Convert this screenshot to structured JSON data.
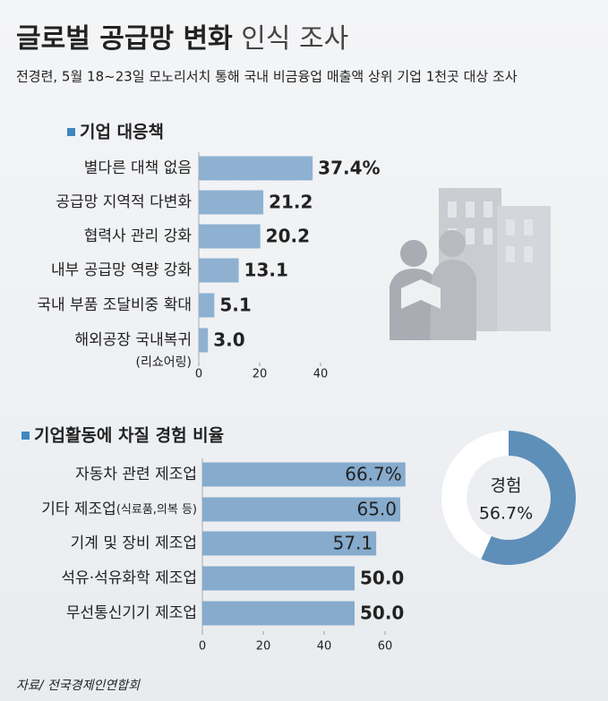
{
  "header": {
    "title": [
      "글로벌 공급망 변화",
      "인식 조사"
    ],
    "subtitle": "전경련, 5월 18~23일 모노리서치 통해 국내 비금융업 매출액 상위 기업 1천곳 대상 조사"
  },
  "chart_data": [
    {
      "type": "hbar",
      "title": "기업 대응책",
      "categories": [
        "별다른 대책 없음",
        "공급망 지역적 다변화",
        "협력사 관리 강화",
        "내부 공급망 역량 강화",
        "국내 부품 조달비중 확대",
        "해외공장 국내복귀"
      ],
      "notes": [
        null,
        null,
        null,
        null,
        null,
        "(리쇼어링)"
      ],
      "values": [
        37.4,
        21.2,
        20.2,
        13.1,
        5.1,
        3.0
      ],
      "value_labels": [
        "37.4%",
        "21.2",
        "20.2",
        "13.1",
        "5.1",
        "3.0"
      ],
      "color": "#8eb1d1",
      "xlim": [
        0,
        40
      ],
      "xticks": [
        0,
        20,
        40
      ]
    },
    {
      "type": "hbar",
      "title": "기업활동에 차질 경험 비율",
      "categories": [
        "자동차 관련 제조업",
        "기타 제조업",
        "기계 및 장비 제조업",
        "석유·석유화학 제조업",
        "무선통신기기 제조업"
      ],
      "notes": [
        null,
        "(식료품,의복 등)",
        null,
        null,
        null
      ],
      "values": [
        66.7,
        65.0,
        57.1,
        50.0,
        50.0
      ],
      "value_labels": [
        "66.7%",
        "65.0",
        "57.1",
        "50.0",
        "50.0"
      ],
      "color": "#86abcd",
      "xlim": [
        0,
        60
      ],
      "xticks": [
        0,
        20,
        40,
        60
      ]
    },
    {
      "type": "donut",
      "label": "경험",
      "value": 56.7,
      "value_label": "56.7%",
      "color": "#5e8fb9"
    }
  ],
  "source": "자료/ 전국경제인연합회"
}
